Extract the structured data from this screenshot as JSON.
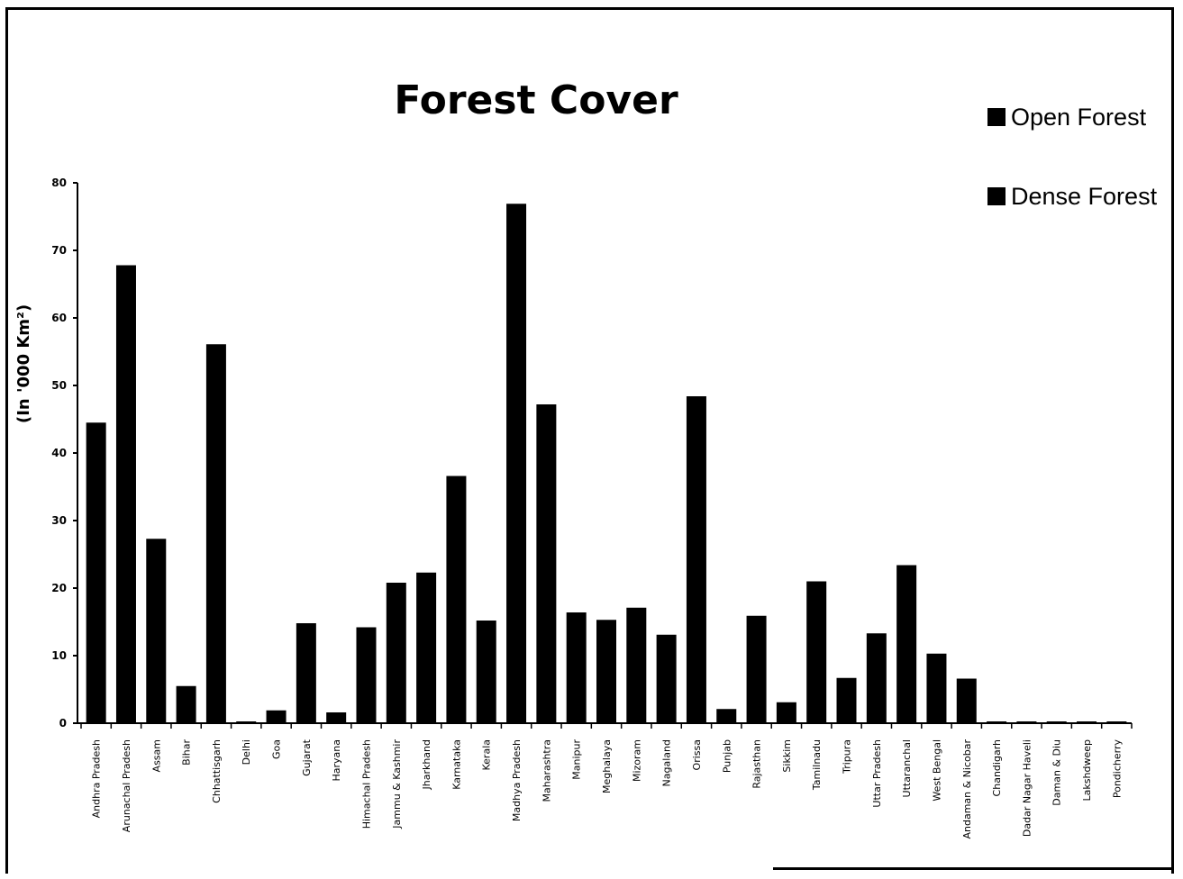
{
  "chart_data": {
    "type": "bar",
    "title": "Forest Cover",
    "ylabel": "(In '000 Km²)",
    "ylim": [
      0,
      80
    ],
    "yticks": [
      0,
      10,
      20,
      30,
      40,
      50,
      60,
      70,
      80
    ],
    "legend": {
      "placement": "top-right",
      "entries": [
        "Open Forest",
        "Dense Forest"
      ]
    },
    "categories": [
      "Andhra Pradesh",
      "Arunachal Pradesh",
      "Assam",
      "Bihar",
      "Chhattisgarh",
      "Delhi",
      "Goa",
      "Gujarat",
      "Haryana",
      "Himachal Pradesh",
      "Jammu & Kashmir",
      "Jharkhand",
      "Karnataka",
      "Kerala",
      "Madhya Pradesh",
      "Maharashtra",
      "Manipur",
      "Meghalaya",
      "Mizoram",
      "Nagaland",
      "Orissa",
      "Punjab",
      "Rajasthan",
      "Sikkim",
      "Tamilnadu",
      "Tripura",
      "Uttar Pradesh",
      "Uttaranchal",
      "West Bengal",
      "Andaman & Nicobar",
      "Chandigarh",
      "Dadar Nagar Haveli",
      "Daman & Diu",
      "Lakshdweep",
      "Pondicherry"
    ],
    "values": [
      44.5,
      67.8,
      27.3,
      5.5,
      56.1,
      0.2,
      1.9,
      14.8,
      1.6,
      14.2,
      20.8,
      22.3,
      36.6,
      15.2,
      76.9,
      47.2,
      16.4,
      15.3,
      17.1,
      13.1,
      48.4,
      2.1,
      15.9,
      3.1,
      21.0,
      6.7,
      13.3,
      23.4,
      10.3,
      6.6,
      0.03,
      0.2,
      0.05,
      0.03,
      0.04
    ],
    "grid": false
  },
  "colors": {
    "bar": "#000000",
    "background": "#ffffff"
  }
}
